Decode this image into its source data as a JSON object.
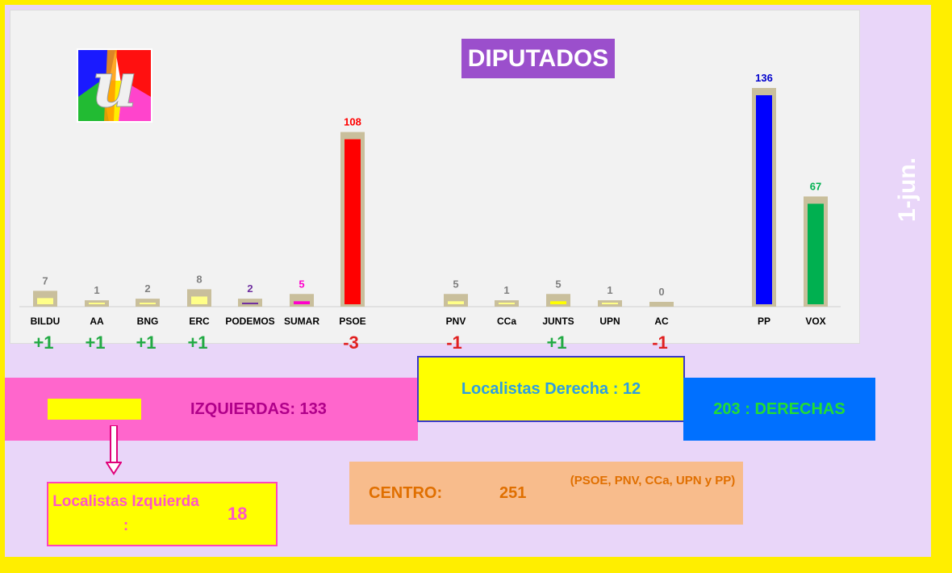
{
  "title": "DIPUTADOS",
  "date_label": "1-jun.",
  "chart_data": {
    "type": "bar",
    "title": "DIPUTADOS",
    "categories": [
      "BILDU",
      "AA",
      "BNG",
      "ERC",
      "PODEMOS",
      "SUMAR",
      "PSOE",
      "PNV",
      "CCa",
      "JUNTS",
      "UPN",
      "AC",
      "PP",
      "VOX"
    ],
    "values": [
      7,
      1,
      2,
      8,
      2,
      5,
      108,
      5,
      1,
      5,
      1,
      0,
      136,
      67
    ],
    "changes": [
      "+1",
      "+1",
      "+1",
      "+1",
      "",
      "",
      "-3",
      "-1",
      "",
      "+1",
      "",
      "-1",
      "",
      ""
    ],
    "bar_colors": [
      "#ffff88",
      "#ffff88",
      "#ffff88",
      "#ffff88",
      "#7030a0",
      "#ff00cc",
      "#ff0000",
      "#ffff88",
      "#ffff88",
      "#ffff00",
      "#ffff88",
      "#ffff88",
      "#0000ff",
      "#00b050"
    ],
    "value_label_colors": [
      "#7f7f7f",
      "#7f7f7f",
      "#7f7f7f",
      "#7f7f7f",
      "#7030a0",
      "#ff00cc",
      "#ff0000",
      "#7f7f7f",
      "#7f7f7f",
      "#7f7f7f",
      "#7f7f7f",
      "#7f7f7f",
      "#0000cc",
      "#00b050"
    ],
    "change_colors": {
      "positive": "#22aa44",
      "negative": "#e02020"
    },
    "ylim": [
      0,
      140
    ],
    "grid": false,
    "legend": "none"
  },
  "summary": {
    "izquierdas": "IZQUIERDAS:  133",
    "localistas_derecha": "Localistas Derecha :  12",
    "derechas": "203 : DERECHAS",
    "localistas_izquierda_label": "Localistas Izquierda :",
    "localistas_izquierda_value": "18",
    "centro_label": "CENTRO:",
    "centro_value": "251",
    "centro_note": "(PSOE, PNV, CCa, UPN y PP)"
  }
}
